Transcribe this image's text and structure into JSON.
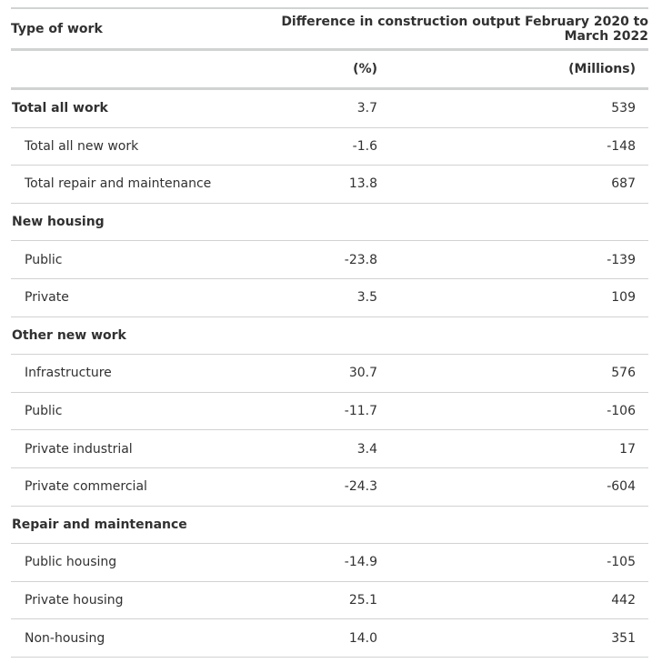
{
  "table": {
    "header": {
      "type_of_work": "Type of work",
      "difference_title": "Difference in construction output February 2020 to March 2022",
      "pct_unit": "(%)",
      "millions_unit": "(Millions)"
    },
    "rows": [
      {
        "label": "Total all work",
        "pct": "3.7",
        "millions": "539",
        "group": true
      },
      {
        "label": "Total all new work",
        "pct": "-1.6",
        "millions": "-148",
        "group": false
      },
      {
        "label": "Total repair and maintenance",
        "pct": "13.8",
        "millions": "687",
        "group": false
      },
      {
        "label": "New housing",
        "pct": "",
        "millions": "",
        "group": true
      },
      {
        "label": "Public",
        "pct": "-23.8",
        "millions": "-139",
        "group": false
      },
      {
        "label": "Private",
        "pct": "3.5",
        "millions": "109",
        "group": false
      },
      {
        "label": "Other new work",
        "pct": "",
        "millions": "",
        "group": true
      },
      {
        "label": "Infrastructure",
        "pct": "30.7",
        "millions": "576",
        "group": false
      },
      {
        "label": "Public",
        "pct": "-11.7",
        "millions": "-106",
        "group": false
      },
      {
        "label": "Private industrial",
        "pct": "3.4",
        "millions": "17",
        "group": false
      },
      {
        "label": "Private commercial",
        "pct": "-24.3",
        "millions": "-604",
        "group": false
      },
      {
        "label": "Repair and maintenance",
        "pct": "",
        "millions": "",
        "group": true
      },
      {
        "label": "Public housing",
        "pct": "-14.9",
        "millions": "-105",
        "group": false
      },
      {
        "label": "Private housing",
        "pct": "25.1",
        "millions": "442",
        "group": false
      },
      {
        "label": "Non-housing",
        "pct": "14.0",
        "millions": "351",
        "group": false
      }
    ]
  }
}
